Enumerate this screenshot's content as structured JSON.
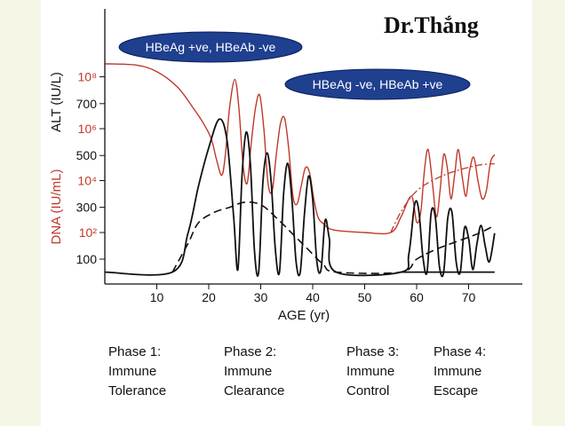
{
  "watermark": "Dr.Thắng",
  "phases": [
    {
      "title": "Phase 1:",
      "line1": "Immune",
      "line2": "Tolerance"
    },
    {
      "title": "Phase 2:",
      "line1": "Immune",
      "line2": "Clearance"
    },
    {
      "title": "Phase 3:",
      "line1": "Immune",
      "line2": "Control"
    },
    {
      "title": "Phase 4:",
      "line1": "Immune",
      "line2": "Escape"
    }
  ],
  "chart_data": {
    "type": "line",
    "xlabel": "AGE (yr)",
    "ylabel_alt": "ALT (IU/L)",
    "ylabel_dna": "DNA (IU/mL)",
    "xlim": [
      0,
      80
    ],
    "x_ticks": [
      10,
      20,
      30,
      40,
      50,
      60,
      70
    ],
    "alt_ticks": [
      "100",
      "300",
      "500",
      "700"
    ],
    "alt_tick_values": [
      100,
      300,
      500,
      700
    ],
    "dna_ticks": [
      "10²",
      "10⁴",
      "10⁶",
      "10⁸"
    ],
    "dna_tick_values": [
      2,
      4,
      6,
      8
    ],
    "grid": false,
    "annotations": [
      "HBeAg +ve, HBeAb -ve",
      "HBeAg -ve, HBeAb +ve"
    ],
    "colors": {
      "dna": "#c0392b",
      "alt": "#111111",
      "axis": "#111111",
      "bubble": "#1f3f8f",
      "dna_label": "#c0392b"
    },
    "series": [
      {
        "key": "dna",
        "style": "solid-red",
        "points": [
          [
            0,
            8.5
          ],
          [
            6,
            8.45
          ],
          [
            10,
            8.2
          ],
          [
            14,
            7.6
          ],
          [
            17,
            6.8
          ],
          [
            19,
            6.2
          ],
          [
            20.5,
            5.6
          ],
          [
            21.5,
            4.8
          ],
          [
            22.5,
            4.2
          ],
          [
            23.2,
            5.0
          ],
          [
            24,
            6.8
          ],
          [
            25,
            7.9
          ],
          [
            25.8,
            6.8
          ],
          [
            26.6,
            4.6
          ],
          [
            27.4,
            3.9
          ],
          [
            28.2,
            5.5
          ],
          [
            29,
            6.8
          ],
          [
            29.8,
            7.3
          ],
          [
            30.6,
            6.0
          ],
          [
            31.4,
            3.9
          ],
          [
            32.2,
            3.6
          ],
          [
            33,
            5.0
          ],
          [
            33.8,
            6.2
          ],
          [
            34.6,
            6.4
          ],
          [
            35.4,
            5.2
          ],
          [
            36.2,
            3.4
          ],
          [
            37,
            3.1
          ],
          [
            37.8,
            3.8
          ],
          [
            38.6,
            4.5
          ],
          [
            39.4,
            4.3
          ],
          [
            40.2,
            3.3
          ],
          [
            41,
            2.6
          ],
          [
            42,
            2.35
          ],
          [
            44,
            2.1
          ],
          [
            50,
            2.0
          ],
          [
            55,
            2.0
          ],
          [
            57,
            2.6
          ],
          [
            59,
            3.4
          ],
          [
            60,
            2.4
          ],
          [
            60.8,
            2.8
          ],
          [
            61.5,
            4.4
          ],
          [
            62.2,
            5.2
          ],
          [
            63,
            4.0
          ],
          [
            63.8,
            2.6
          ],
          [
            64.5,
            3.6
          ],
          [
            65.2,
            5.0
          ],
          [
            65.9,
            4.5
          ],
          [
            66.6,
            3.3
          ],
          [
            67.3,
            4.2
          ],
          [
            68,
            5.2
          ],
          [
            68.8,
            4.1
          ],
          [
            69.5,
            3.4
          ],
          [
            70.2,
            4.4
          ],
          [
            71,
            4.9
          ],
          [
            71.8,
            4.0
          ],
          [
            72.6,
            3.3
          ],
          [
            73.4,
            3.6
          ],
          [
            74.2,
            4.7
          ],
          [
            75,
            5.0
          ]
        ]
      },
      {
        "key": "dna_trend",
        "style": "dashdot-red",
        "points": [
          [
            55,
            2.0
          ],
          [
            57,
            2.8
          ],
          [
            60,
            3.6
          ],
          [
            64,
            4.1
          ],
          [
            68,
            4.4
          ],
          [
            72,
            4.6
          ],
          [
            75,
            4.65
          ]
        ]
      },
      {
        "key": "alt",
        "style": "solid-black",
        "points": [
          [
            0,
            50
          ],
          [
            13,
            50
          ],
          [
            16,
            200
          ],
          [
            18,
            380
          ],
          [
            20,
            530
          ],
          [
            22,
            640
          ],
          [
            23.5,
            560
          ],
          [
            24.8,
            260
          ],
          [
            25.6,
            60
          ],
          [
            26.4,
            420
          ],
          [
            27.2,
            590
          ],
          [
            28,
            470
          ],
          [
            28.8,
            130
          ],
          [
            29.6,
            50
          ],
          [
            30.4,
            390
          ],
          [
            31.2,
            510
          ],
          [
            32,
            400
          ],
          [
            32.8,
            140
          ],
          [
            33.6,
            50
          ],
          [
            34.4,
            350
          ],
          [
            35.2,
            470
          ],
          [
            36,
            330
          ],
          [
            36.8,
            90
          ],
          [
            37.6,
            50
          ],
          [
            38.4,
            270
          ],
          [
            39.2,
            420
          ],
          [
            40,
            330
          ],
          [
            40.8,
            90
          ],
          [
            41.6,
            60
          ],
          [
            42.4,
            250
          ],
          [
            43.2,
            180
          ],
          [
            44.5,
            50
          ],
          [
            57,
            50
          ],
          [
            58.5,
            120
          ],
          [
            59.6,
            310
          ],
          [
            60.4,
            290
          ],
          [
            61.2,
            110
          ],
          [
            62,
            50
          ],
          [
            62.8,
            280
          ],
          [
            63.6,
            260
          ],
          [
            64.4,
            70
          ],
          [
            65.2,
            50
          ],
          [
            66,
            260
          ],
          [
            66.8,
            280
          ],
          [
            67.6,
            90
          ],
          [
            68.4,
            50
          ],
          [
            69.2,
            220
          ],
          [
            70,
            180
          ],
          [
            70.8,
            60
          ],
          [
            71.6,
            160
          ],
          [
            72.4,
            230
          ],
          [
            73.2,
            150
          ],
          [
            74,
            90
          ],
          [
            75,
            200
          ]
        ]
      },
      {
        "key": "alt_trend",
        "style": "dashed-black",
        "points": [
          [
            13,
            50
          ],
          [
            16,
            160
          ],
          [
            18,
            240
          ],
          [
            21,
            280
          ],
          [
            24,
            300
          ],
          [
            27,
            320
          ],
          [
            30,
            310
          ],
          [
            33,
            260
          ],
          [
            36,
            200
          ],
          [
            39,
            140
          ],
          [
            42,
            80
          ],
          [
            44.5,
            50
          ],
          [
            57,
            50
          ],
          [
            60,
            100
          ],
          [
            64,
            140
          ],
          [
            68,
            170
          ],
          [
            72,
            200
          ],
          [
            75,
            230
          ]
        ]
      },
      {
        "key": "alt_baseline",
        "style": "solid-black",
        "points": [
          [
            57,
            50
          ],
          [
            75,
            50
          ]
        ]
      }
    ]
  }
}
